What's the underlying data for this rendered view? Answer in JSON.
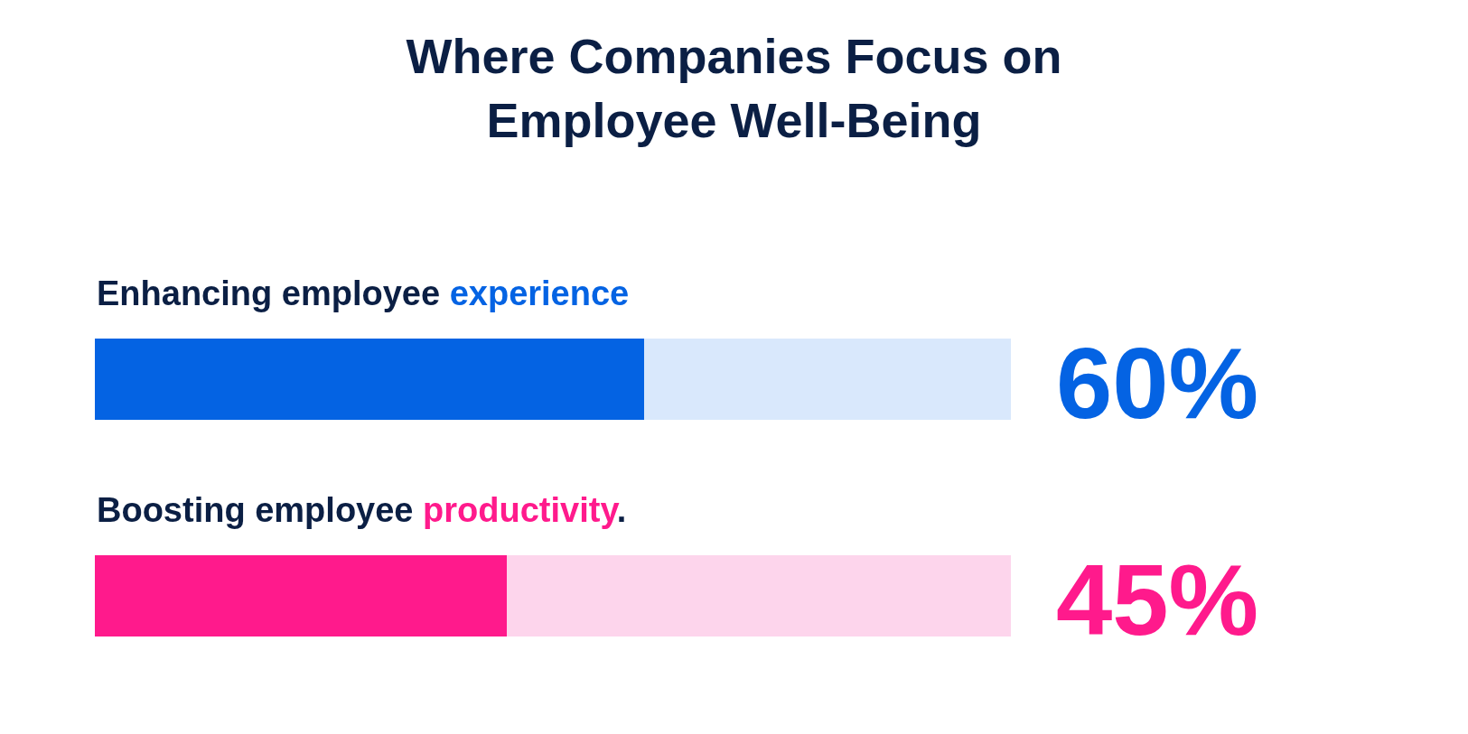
{
  "chart_data": {
    "type": "bar",
    "orientation": "horizontal",
    "stacked": true,
    "title": "Where Companies Focus on Employee Well-Being",
    "categories": [
      "Enhancing employee experience",
      "Boosting employee productivity."
    ],
    "series": [
      {
        "colors": [
          "#0463e3",
          "#ff1a8c"
        ],
        "values": [
          60,
          45
        ],
        "value_labels": [
          "60%",
          "45%"
        ]
      },
      {
        "colors": [
          "#d9e8fc",
          "#fdd5ec"
        ],
        "values": [
          40,
          55
        ]
      }
    ],
    "xlim": [
      0,
      100
    ],
    "tick_labels": false,
    "grid": false
  }
}
